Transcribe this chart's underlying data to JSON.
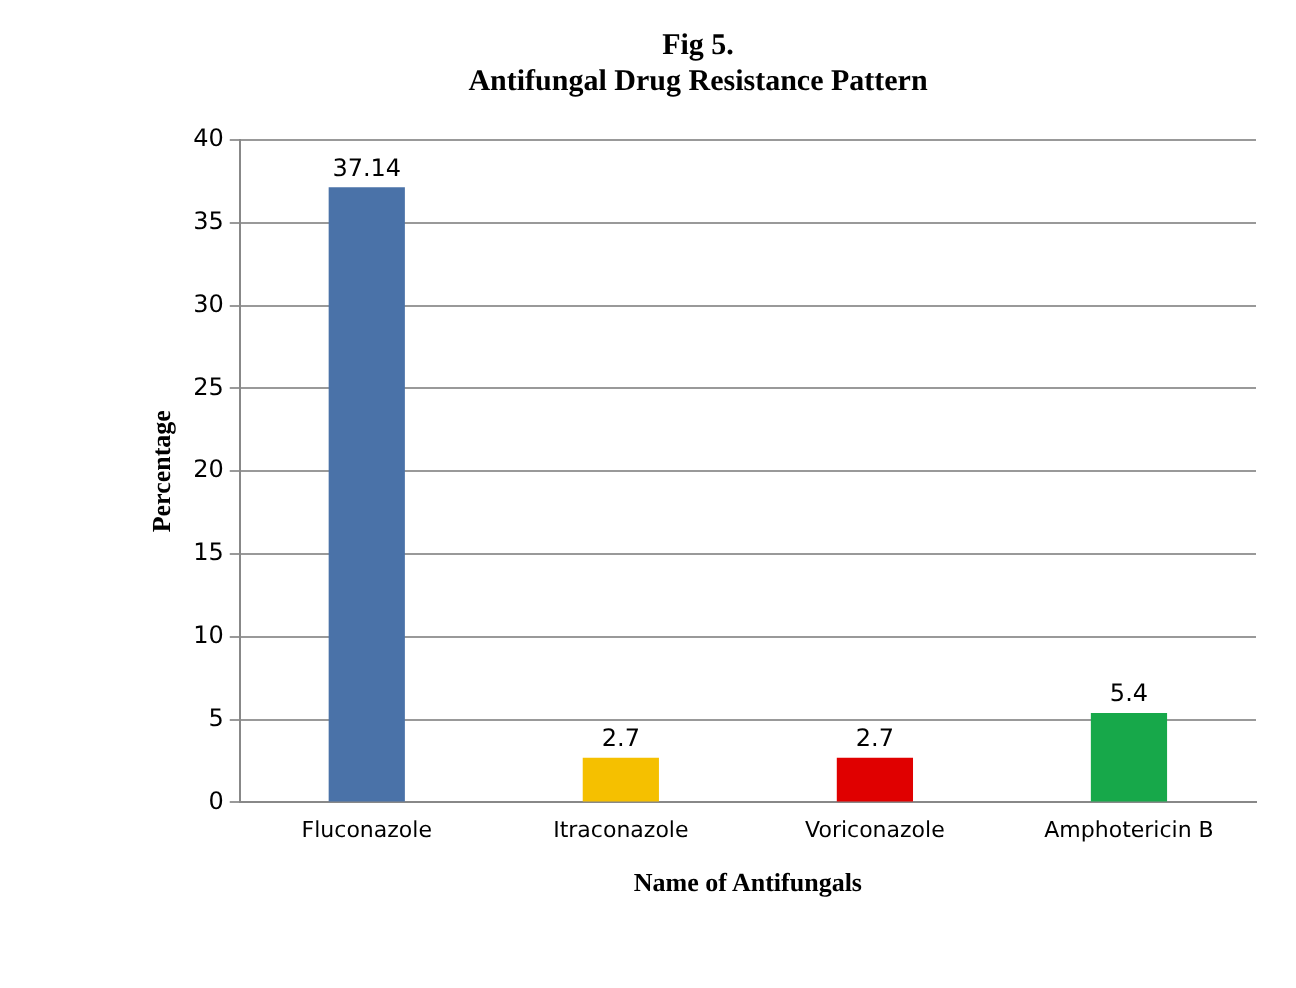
{
  "chart_data": {
    "type": "bar",
    "title": "Fig 5.",
    "subtitle": "Antifungal Drug Resistance Pattern",
    "xlabel": "Name of Antifungals",
    "ylabel": "Percentage",
    "categories": [
      "Fluconazole",
      "Itraconazole",
      "Voriconazole",
      "Amphotericin B"
    ],
    "values": [
      37.14,
      2.7,
      2.7,
      5.4
    ],
    "colors": [
      "#4a72a8",
      "#f5c000",
      "#e00000",
      "#17a84a"
    ],
    "ylim": [
      0,
      40
    ],
    "yticks": [
      0,
      5,
      10,
      15,
      20,
      25,
      30,
      35,
      40
    ],
    "grid": "y",
    "legend": false,
    "data_labels": true
  }
}
